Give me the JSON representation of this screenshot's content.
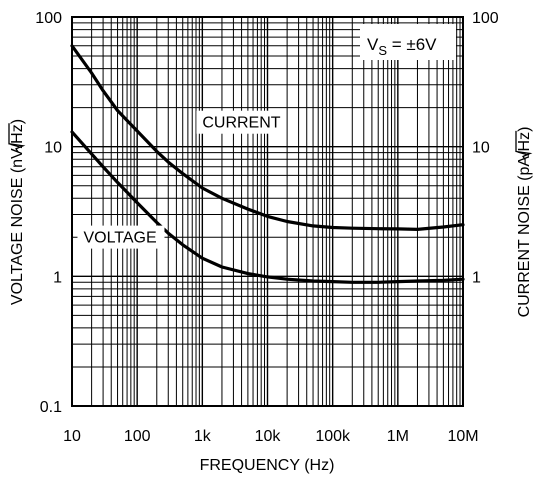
{
  "chart_data": {
    "type": "line",
    "x_scale": "log",
    "y_scale": "log",
    "xlim": [
      10,
      10000000
    ],
    "ylim": [
      0.1,
      100
    ],
    "grid": true,
    "xlabel": "FREQUENCY (Hz)",
    "ylabel_left": {
      "prefix": "VOLTAGE NOISE (nV/",
      "radical": "Hz",
      "suffix": ")"
    },
    "ylabel_right": {
      "prefix": "CURRENT NOISE (pA/",
      "radical": "Hz",
      "suffix": ")"
    },
    "x_ticks": [
      {
        "value": 10,
        "label": "10"
      },
      {
        "value": 100,
        "label": "100"
      },
      {
        "value": 1000,
        "label": "1k"
      },
      {
        "value": 10000,
        "label": "10k"
      },
      {
        "value": 100000,
        "label": "100k"
      },
      {
        "value": 1000000,
        "label": "1M"
      },
      {
        "value": 10000000,
        "label": "10M"
      }
    ],
    "y_ticks_left": [
      {
        "value": 100,
        "label": "100"
      },
      {
        "value": 10,
        "label": "10"
      },
      {
        "value": 1,
        "label": "1"
      },
      {
        "value": 0.1,
        "label": "0.1"
      }
    ],
    "y_ticks_right": [
      {
        "value": 100,
        "label": "100"
      },
      {
        "value": 10,
        "label": "10"
      },
      {
        "value": 1,
        "label": "1"
      }
    ],
    "annotation": {
      "main": "V",
      "sub": "S",
      "rest": " = ±6V"
    },
    "series": [
      {
        "name": "CURRENT",
        "color": "#000000",
        "label_anchor": [
          1000,
          14
        ],
        "points": [
          [
            10,
            60
          ],
          [
            20,
            37
          ],
          [
            30,
            27
          ],
          [
            50,
            19
          ],
          [
            100,
            13.2
          ],
          [
            200,
            9.2
          ],
          [
            300,
            7.6
          ],
          [
            500,
            6.2
          ],
          [
            1000,
            4.8
          ],
          [
            2000,
            4.0
          ],
          [
            5000,
            3.3
          ],
          [
            10000,
            2.9
          ],
          [
            20000,
            2.65
          ],
          [
            50000,
            2.45
          ],
          [
            100000,
            2.38
          ],
          [
            200000,
            2.35
          ],
          [
            500000,
            2.33
          ],
          [
            1000000,
            2.32
          ],
          [
            2000000,
            2.3
          ],
          [
            5000000,
            2.4
          ],
          [
            10000000,
            2.5
          ]
        ]
      },
      {
        "name": "VOLTAGE",
        "color": "#000000",
        "label_anchor": [
          15,
          1.82
        ],
        "points": [
          [
            10,
            13
          ],
          [
            20,
            8.8
          ],
          [
            30,
            7.0
          ],
          [
            50,
            5.3
          ],
          [
            100,
            3.7
          ],
          [
            200,
            2.6
          ],
          [
            300,
            2.15
          ],
          [
            500,
            1.75
          ],
          [
            1000,
            1.38
          ],
          [
            2000,
            1.18
          ],
          [
            5000,
            1.05
          ],
          [
            10000,
            0.99
          ],
          [
            20000,
            0.95
          ],
          [
            50000,
            0.92
          ],
          [
            100000,
            0.91
          ],
          [
            200000,
            0.9
          ],
          [
            500000,
            0.9
          ],
          [
            1000000,
            0.91
          ],
          [
            2000000,
            0.92
          ],
          [
            5000000,
            0.93
          ],
          [
            10000000,
            0.95
          ]
        ]
      }
    ]
  }
}
